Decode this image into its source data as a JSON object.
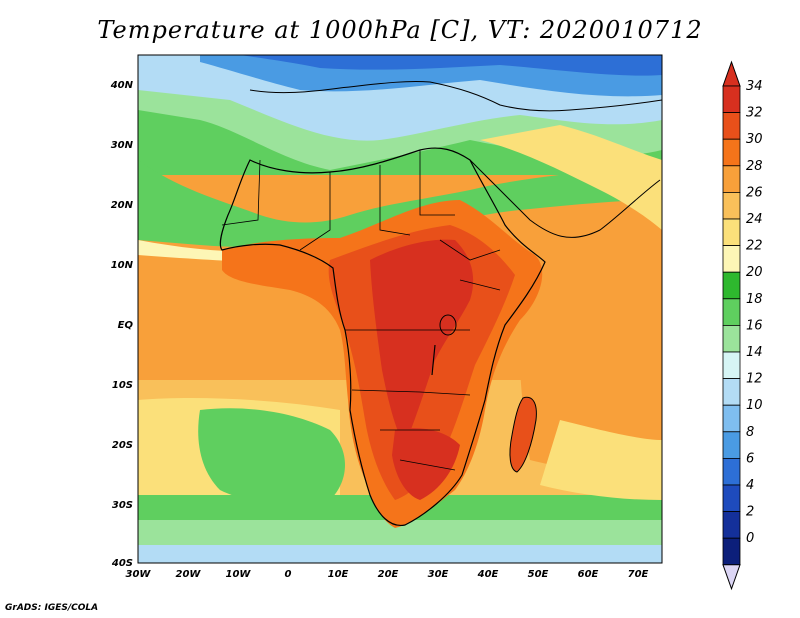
{
  "title": "Temperature at 1000hPa [C], VT: 2020010712",
  "credit": "GrADS: IGES/COLA",
  "map": {
    "variable": "Temperature at 1000hPa",
    "units": "C",
    "valid_time": "2020010712",
    "lon_range": [
      -30,
      75
    ],
    "lat_range": [
      -40,
      45
    ],
    "lon_ticks": [
      "30W",
      "20W",
      "10W",
      "0",
      "10E",
      "20E",
      "30E",
      "40E",
      "50E",
      "60E",
      "70E"
    ],
    "lat_ticks": [
      "40N",
      "30N",
      "20N",
      "10N",
      "EQ",
      "10S",
      "20S",
      "30S",
      "40S"
    ]
  },
  "colorbar": {
    "labels": [
      "34",
      "32",
      "30",
      "28",
      "26",
      "24",
      "22",
      "20",
      "18",
      "16",
      "14",
      "12",
      "10",
      "8",
      "6",
      "4",
      "2",
      "0"
    ],
    "colors": [
      "#d7301f",
      "#e8501a",
      "#f5741a",
      "#f8a03a",
      "#f9c05a",
      "#fbe07a",
      "#fdf6b6",
      "#2eb82e",
      "#5fcf5f",
      "#9be39b",
      "#d6f5f5",
      "#b3dcf5",
      "#7fbef0",
      "#4a9be3",
      "#2d6fd6",
      "#1e4bbd",
      "#14309a",
      "#0c1f7a"
    ],
    "arrow_top_color": "#d7301f",
    "arrow_bottom_color": "#dcd6f5"
  }
}
